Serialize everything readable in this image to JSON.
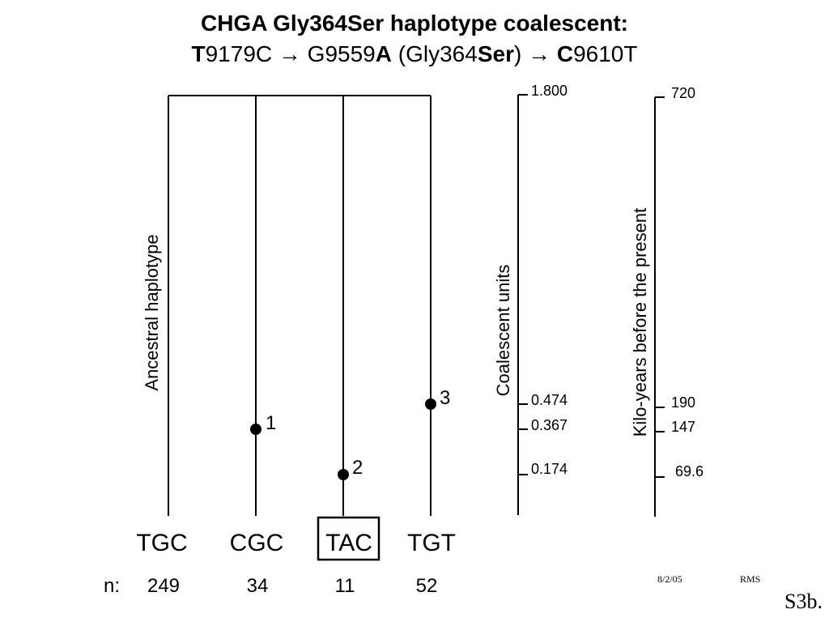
{
  "title": {
    "line1": "CHGA Gly364Ser haplotype coalescent:",
    "line2": {
      "t": "T",
      "p1": "9179C",
      "arrow1": "→",
      "p2": " G9559",
      "a": "A",
      "p3": " (Gly364",
      "ser": "Ser",
      "p4": ") ",
      "arrow2": "→",
      "c": " C",
      "p5": "9610T"
    }
  },
  "tree": {
    "ancestral_label": "Ancestral haplotype",
    "haplotypes": [
      {
        "name": "TGC",
        "n": "249",
        "mutation": ""
      },
      {
        "name": "CGC",
        "n": "34",
        "mutation": "1"
      },
      {
        "name": "TAC",
        "n": "11",
        "mutation": "2",
        "boxed": true
      },
      {
        "name": "TGT",
        "n": "52",
        "mutation": "3"
      }
    ],
    "n_label": "n:"
  },
  "coalescent_axis": {
    "label": "Coalescent units",
    "ticks": [
      "1.800",
      "0.474",
      "0.367",
      "0.174"
    ]
  },
  "kiloyears_axis": {
    "label": "Kilo-years before the present",
    "ticks": [
      "720",
      "190",
      "147",
      "69.6"
    ]
  },
  "footer": {
    "date": "8/2/05",
    "author": "RMS",
    "slide_id": "S3b."
  }
}
